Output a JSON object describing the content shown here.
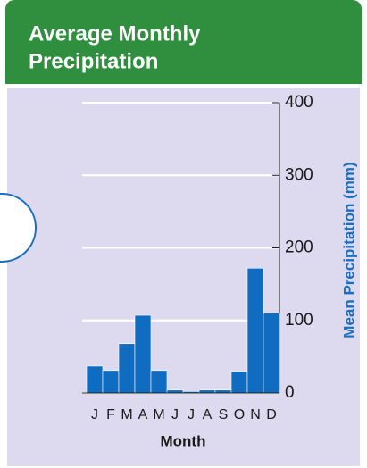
{
  "chart_data": {
    "type": "bar",
    "title": "Average Monthly Precipitation",
    "title_lines": [
      "Average Monthly",
      "Precipitation"
    ],
    "categories": [
      "J",
      "F",
      "M",
      "A",
      "M",
      "J",
      "J",
      "A",
      "S",
      "O",
      "N",
      "D"
    ],
    "values": [
      37,
      31,
      68,
      107,
      31,
      4,
      2,
      4,
      4,
      30,
      172,
      110
    ],
    "color": "#0f6cc0",
    "x_label": "Month",
    "y_label": "Mean Precipitation (mm)",
    "ylim": [
      0,
      400
    ],
    "yticks": [
      0,
      100,
      200,
      300,
      400
    ],
    "grid": true
  }
}
